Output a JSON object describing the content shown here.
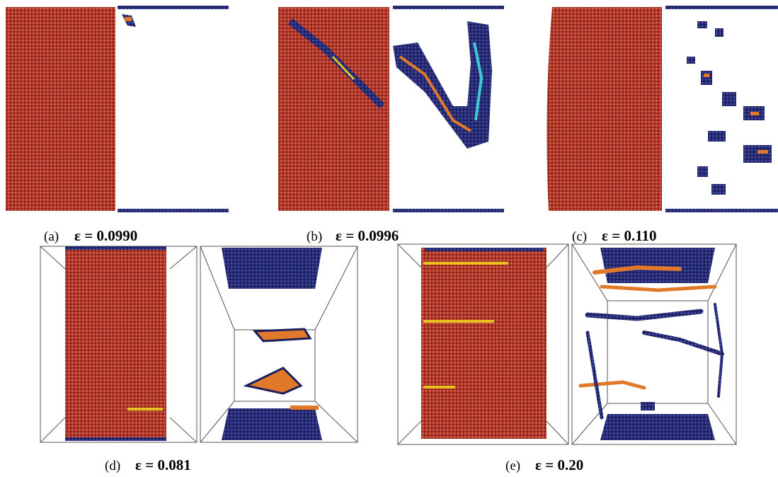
{
  "panels": [
    {
      "label": "(a)",
      "formula": "ε = 0.0990"
    },
    {
      "label": "(b)",
      "formula": "ε = 0.0996"
    },
    {
      "label": "(c)",
      "formula": "ε = 0.110"
    },
    {
      "label": "(d)",
      "formula": "ε = 0.081"
    },
    {
      "label": "(e)",
      "formula": "ε = 0.20"
    }
  ]
}
